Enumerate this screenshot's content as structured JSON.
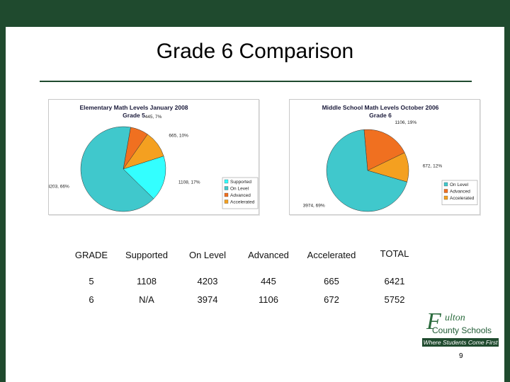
{
  "slide": {
    "title": "Grade 6 Comparison",
    "page_number": "9"
  },
  "chart_data": [
    {
      "type": "pie",
      "title": "Elementary Math Levels January 2008",
      "subtitle": "Grade 5",
      "categories": [
        "Supported",
        "On Level",
        "Advanced",
        "Accelerated"
      ],
      "values": [
        1108,
        4203,
        445,
        665
      ],
      "labels": [
        "1108, 17%",
        "4203, 66%",
        "445, 7%",
        "665, 10%"
      ],
      "colors": [
        "#33ffff",
        "#40c8cc",
        "#f07020",
        "#f4a020"
      ],
      "legend": [
        "Supported",
        "On Level",
        "Advanced",
        "Accelerated"
      ],
      "legend_position": "right"
    },
    {
      "type": "pie",
      "title": "Middle School Math Levels October 2006",
      "subtitle": "Grade 6",
      "categories": [
        "On Level",
        "Advanced",
        "Accelerated"
      ],
      "values": [
        3974,
        1106,
        672
      ],
      "labels": [
        "3974, 69%",
        "1106, 19%",
        "672, 12%"
      ],
      "colors": [
        "#40c8cc",
        "#f07020",
        "#f4a020"
      ],
      "legend": [
        "On Level",
        "Advanced",
        "Accelerated"
      ],
      "legend_position": "right"
    }
  ],
  "table": {
    "headers": [
      "GRADE",
      "Supported",
      "On Level",
      "Advanced",
      "Accelerated",
      "TOTAL"
    ],
    "rows": [
      [
        "5",
        "1108",
        "4203",
        "445",
        "665",
        "6421"
      ],
      [
        "6",
        "N/A",
        "3974",
        "1106",
        "672",
        "5752"
      ]
    ]
  },
  "logo": {
    "glyph": "F",
    "name_line1": "ulton",
    "name_line2": "County Schools",
    "tagline": "Where Students Come First",
    "brand_color": "#1f4a2e"
  }
}
